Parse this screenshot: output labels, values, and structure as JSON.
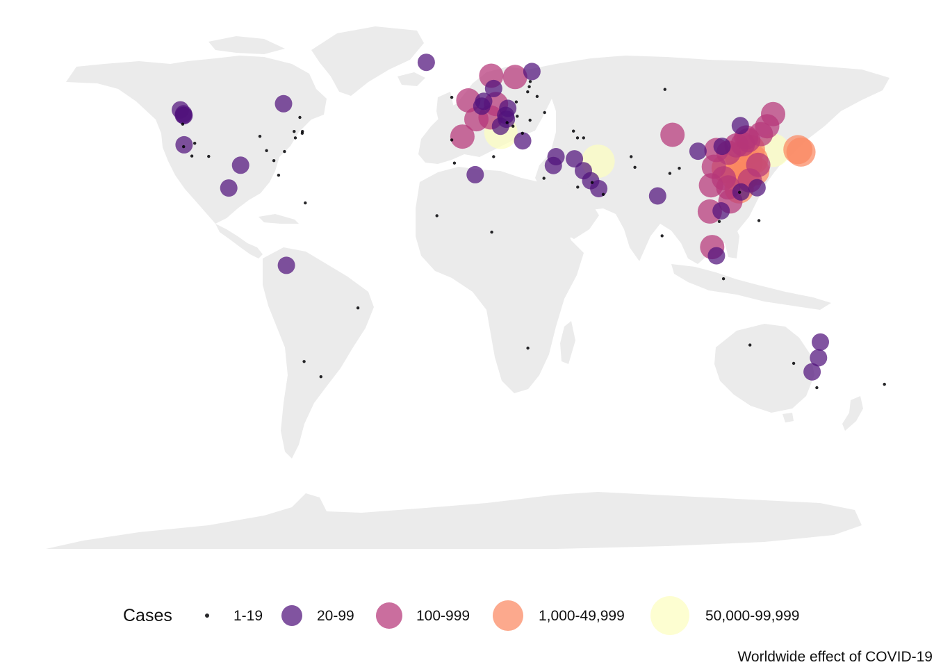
{
  "map": {
    "land_color": "#ebebeb",
    "point_opacity": 0.72,
    "legend_title": "Cases",
    "caption": "Worldwide effect of COVID-19",
    "legend": [
      {
        "label": "1-19",
        "color": "#000004"
      },
      {
        "label": "20-99",
        "color": "#51127c"
      },
      {
        "label": "100-999",
        "color": "#b63679"
      },
      {
        "label": "1,000-49,999",
        "color": "#fb8861"
      },
      {
        "label": "50,000-99,999",
        "color": "#fcfdbf"
      }
    ],
    "points": [
      {
        "place": "China - Hubei",
        "lon": 112.3,
        "lat": 30.9,
        "cls": 4
      },
      {
        "place": "China - Guangdong",
        "lon": 113.4,
        "lat": 23.3,
        "cls": 3
      },
      {
        "place": "China - Henan",
        "lon": 113.6,
        "lat": 33.9,
        "cls": 3
      },
      {
        "place": "China - Zhejiang",
        "lon": 120.1,
        "lat": 29.2,
        "cls": 3
      },
      {
        "place": "China - Hunan",
        "lon": 111.7,
        "lat": 27.6,
        "cls": 3
      },
      {
        "place": "China - Anhui",
        "lon": 117.2,
        "lat": 31.8,
        "cls": 3
      },
      {
        "place": "China - Jiangxi",
        "lon": 115.7,
        "lat": 27.6,
        "cls": 3
      },
      {
        "place": "China - Shandong",
        "lon": 118.2,
        "lat": 36.3,
        "cls": 3
      },
      {
        "place": "China - Jiangsu",
        "lon": 119.5,
        "lat": 32.9,
        "cls": 3
      },
      {
        "place": "China - Chongqing",
        "lon": 107.9,
        "lat": 30.1,
        "cls": 3
      },
      {
        "place": "China - Sichuan",
        "lon": 102.7,
        "lat": 30.6,
        "cls": 2
      },
      {
        "place": "China - Heilongjiang",
        "lon": 127.8,
        "lat": 47.9,
        "cls": 2
      },
      {
        "place": "China - Beijing",
        "lon": 116.4,
        "lat": 40.2,
        "cls": 2
      },
      {
        "place": "China - Shanghai",
        "lon": 121.5,
        "lat": 31.2,
        "cls": 2
      },
      {
        "place": "China - Hebei",
        "lon": 115.0,
        "lat": 38.0,
        "cls": 2
      },
      {
        "place": "China - Fujian",
        "lon": 117.9,
        "lat": 26.1,
        "cls": 2
      },
      {
        "place": "China - Guangxi",
        "lon": 108.8,
        "lat": 23.8,
        "cls": 2
      },
      {
        "place": "China - Shaanxi",
        "lon": 108.9,
        "lat": 35.2,
        "cls": 2
      },
      {
        "place": "China - Yunnan",
        "lon": 101.5,
        "lat": 24.5,
        "cls": 2
      },
      {
        "place": "China - Hainan",
        "lon": 109.7,
        "lat": 19.2,
        "cls": 2
      },
      {
        "place": "China - Guizhou",
        "lon": 106.9,
        "lat": 26.8,
        "cls": 2
      },
      {
        "place": "China - Tianjin",
        "lon": 117.3,
        "lat": 39.3,
        "cls": 2
      },
      {
        "place": "China - Shanxi",
        "lon": 112.3,
        "lat": 37.6,
        "cls": 2
      },
      {
        "place": "China - Liaoning",
        "lon": 122.6,
        "lat": 41.3,
        "cls": 2
      },
      {
        "place": "China - Gansu",
        "lon": 103.8,
        "lat": 36.1,
        "cls": 2
      },
      {
        "place": "China - Jilin",
        "lon": 125.3,
        "lat": 43.9,
        "cls": 2
      },
      {
        "place": "China - Xinjiang",
        "lon": 85.2,
        "lat": 41.1,
        "cls": 2
      },
      {
        "place": "China - Ningxia",
        "lon": 106.2,
        "lat": 37.3,
        "cls": 1
      },
      {
        "place": "China - Inner Mongolia",
        "lon": 113.9,
        "lat": 44.1,
        "cls": 1
      },
      {
        "place": "China - Qinghai",
        "lon": 96.0,
        "lat": 35.7,
        "cls": 1
      },
      {
        "place": "China - Tibet",
        "lon": 88.1,
        "lat": 30.1,
        "cls": 0
      },
      {
        "place": "Hong Kong",
        "lon": 114.2,
        "lat": 22.3,
        "cls": 1
      },
      {
        "place": "Macau",
        "lon": 113.6,
        "lat": 22.2,
        "cls": 0
      },
      {
        "place": "Taiwan",
        "lon": 121.0,
        "lat": 23.7,
        "cls": 1
      },
      {
        "place": "South Korea",
        "lon": 127.8,
        "lat": 36.0,
        "cls": 4
      },
      {
        "place": "Japan",
        "lon": 138.3,
        "lat": 36.2,
        "cls": 3
      },
      {
        "place": "Diamond Princess",
        "lon": 139.6,
        "lat": 35.4,
        "cls": 3
      },
      {
        "place": "Italy",
        "lon": 12.6,
        "lat": 41.9,
        "cls": 4
      },
      {
        "place": "Iran",
        "lon": 53.7,
        "lat": 32.4,
        "cls": 4
      },
      {
        "place": "Germany",
        "lon": 10.5,
        "lat": 51.2,
        "cls": 2
      },
      {
        "place": "France",
        "lon": 2.2,
        "lat": 46.2,
        "cls": 2
      },
      {
        "place": "Spain",
        "lon": -3.7,
        "lat": 40.5,
        "cls": 2
      },
      {
        "place": "United Kingdom",
        "lon": -1.2,
        "lat": 52.4,
        "cls": 2
      },
      {
        "place": "Switzerland",
        "lon": 8.2,
        "lat": 46.8,
        "cls": 2
      },
      {
        "place": "Norway",
        "lon": 8.5,
        "lat": 60.5,
        "cls": 2
      },
      {
        "place": "Sweden",
        "lon": 18.6,
        "lat": 60.1,
        "cls": 2
      },
      {
        "place": "Netherlands",
        "lon": 5.3,
        "lat": 52.1,
        "cls": 1
      },
      {
        "place": "Belgium",
        "lon": 4.5,
        "lat": 50.5,
        "cls": 1
      },
      {
        "place": "Austria",
        "lon": 14.6,
        "lat": 47.5,
        "cls": 1
      },
      {
        "place": "Denmark",
        "lon": 9.5,
        "lat": 56.3,
        "cls": 1
      },
      {
        "place": "Finland",
        "lon": 25.7,
        "lat": 61.9,
        "cls": 1
      },
      {
        "place": "Iceland",
        "lon": -19.0,
        "lat": 64.9,
        "cls": 1
      },
      {
        "place": "San Marino",
        "lon": 12.4,
        "lat": 43.9,
        "cls": 1
      },
      {
        "place": "Greece",
        "lon": 21.8,
        "lat": 39.1,
        "cls": 1
      },
      {
        "place": "Czech Republic",
        "lon": 15.5,
        "lat": 49.8,
        "cls": 1
      },
      {
        "place": "Slovenia",
        "lon": 14.9,
        "lat": 46.2,
        "cls": 1
      },
      {
        "place": "Croatia",
        "lon": 15.2,
        "lat": 45.1,
        "cls": 0
      },
      {
        "place": "Ireland",
        "lon": -8.2,
        "lat": 53.4,
        "cls": 0
      },
      {
        "place": "Portugal",
        "lon": -8.2,
        "lat": 39.4,
        "cls": 0
      },
      {
        "place": "Poland",
        "lon": 19.1,
        "lat": 51.9,
        "cls": 0
      },
      {
        "place": "Estonia",
        "lon": 25.0,
        "lat": 58.6,
        "cls": 0
      },
      {
        "place": "Latvia",
        "lon": 24.6,
        "lat": 56.9,
        "cls": 0
      },
      {
        "place": "Lithuania",
        "lon": 23.9,
        "lat": 55.2,
        "cls": 0
      },
      {
        "place": "Belarus",
        "lon": 27.9,
        "lat": 53.7,
        "cls": 0
      },
      {
        "place": "Romania",
        "lon": 24.9,
        "lat": 45.9,
        "cls": 0
      },
      {
        "place": "Hungary",
        "lon": 19.5,
        "lat": 47.2,
        "cls": 0
      },
      {
        "place": "Bosnia and Herzegovina",
        "lon": 17.7,
        "lat": 43.9,
        "cls": 0
      },
      {
        "place": "North Macedonia",
        "lon": 21.7,
        "lat": 41.6,
        "cls": 0
      },
      {
        "place": "Ukraine",
        "lon": 31.1,
        "lat": 48.4,
        "cls": 0
      },
      {
        "place": "Georgia",
        "lon": 43.3,
        "lat": 42.3,
        "cls": 0
      },
      {
        "place": "Armenia",
        "lon": 45.0,
        "lat": 40.1,
        "cls": 0
      },
      {
        "place": "Azerbaijan",
        "lon": 47.6,
        "lat": 40.1,
        "cls": 0
      },
      {
        "place": "Russia",
        "lon": 82.0,
        "lat": 56.0,
        "cls": 0
      },
      {
        "place": "Israel",
        "lon": 34.8,
        "lat": 31.0,
        "cls": 1
      },
      {
        "place": "Lebanon",
        "lon": 35.9,
        "lat": 33.9,
        "cls": 1
      },
      {
        "place": "Egypt",
        "lon": 30.8,
        "lat": 26.8,
        "cls": 0
      },
      {
        "place": "Algeria",
        "lon": 1.7,
        "lat": 28.0,
        "cls": 1
      },
      {
        "place": "Morocco",
        "lon": -7.1,
        "lat": 31.8,
        "cls": 0
      },
      {
        "place": "Tunisia",
        "lon": 9.5,
        "lat": 33.9,
        "cls": 0
      },
      {
        "place": "Senegal",
        "lon": -14.5,
        "lat": 14.5,
        "cls": 0
      },
      {
        "place": "Nigeria",
        "lon": 8.7,
        "lat": 9.1,
        "cls": 0
      },
      {
        "place": "South Africa",
        "lon": 24.0,
        "lat": -29.0,
        "cls": 0
      },
      {
        "place": "Iraq",
        "lon": 43.7,
        "lat": 33.2,
        "cls": 1
      },
      {
        "place": "Kuwait",
        "lon": 47.5,
        "lat": 29.3,
        "cls": 1
      },
      {
        "place": "Bahrain",
        "lon": 50.6,
        "lat": 26.0,
        "cls": 1
      },
      {
        "place": "Qatar",
        "lon": 51.2,
        "lat": 25.4,
        "cls": 0
      },
      {
        "place": "United Arab Emirates",
        "lon": 54.0,
        "lat": 23.4,
        "cls": 1
      },
      {
        "place": "Oman",
        "lon": 55.9,
        "lat": 21.5,
        "cls": 0
      },
      {
        "place": "Saudi Arabia",
        "lon": 45.1,
        "lat": 23.9,
        "cls": 0
      },
      {
        "place": "Afghanistan",
        "lon": 67.7,
        "lat": 33.9,
        "cls": 0
      },
      {
        "place": "Pakistan",
        "lon": 69.3,
        "lat": 30.4,
        "cls": 0
      },
      {
        "place": "Nepal",
        "lon": 84.1,
        "lat": 28.4,
        "cls": 0
      },
      {
        "place": "India",
        "lon": 78.9,
        "lat": 21.0,
        "cls": 1
      },
      {
        "place": "Sri Lanka",
        "lon": 80.8,
        "lat": 7.9,
        "cls": 0
      },
      {
        "place": "Thailand",
        "lon": 101.0,
        "lat": 15.9,
        "cls": 2
      },
      {
        "place": "Vietnam",
        "lon": 105.8,
        "lat": 16.1,
        "cls": 1
      },
      {
        "place": "Cambodia",
        "lon": 105.0,
        "lat": 12.6,
        "cls": 0
      },
      {
        "place": "Philippines",
        "lon": 121.8,
        "lat": 12.9,
        "cls": 0
      },
      {
        "place": "Malaysia",
        "lon": 102.0,
        "lat": 4.2,
        "cls": 2
      },
      {
        "place": "Singapore",
        "lon": 103.8,
        "lat": 1.35,
        "cls": 1
      },
      {
        "place": "Indonesia",
        "lon": 106.8,
        "lat": -6.2,
        "cls": 0
      },
      {
        "place": "Australia - New South Wales",
        "lon": 147.0,
        "lat": -32.2,
        "cls": 1
      },
      {
        "place": "Australia - Victoria",
        "lon": 144.3,
        "lat": -36.8,
        "cls": 1
      },
      {
        "place": "Australia - Queensland",
        "lon": 147.8,
        "lat": -27.0,
        "cls": 1
      },
      {
        "place": "Australia - South Australia",
        "lon": 136.5,
        "lat": -34.0,
        "cls": 0
      },
      {
        "place": "Australia - Western Australia",
        "lon": 118.0,
        "lat": -28.0,
        "cls": 0
      },
      {
        "place": "Australia - Tasmania",
        "lon": 146.3,
        "lat": -42.0,
        "cls": 0
      },
      {
        "place": "New Zealand",
        "lon": 174.9,
        "lat": -40.9,
        "cls": 0
      },
      {
        "place": "US - Washington",
        "lon": -121.5,
        "lat": 47.4,
        "cls": 1
      },
      {
        "place": "US - Washington (King County)",
        "lon": -121.8,
        "lat": 47.5,
        "cls": 1
      },
      {
        "place": "US - Snohomish",
        "lon": -121.7,
        "lat": 48.0,
        "cls": 1
      },
      {
        "place": "US - California",
        "lon": -121.5,
        "lat": 37.8,
        "cls": 1
      },
      {
        "place": "US - Santa Clara",
        "lon": -121.7,
        "lat": 37.2,
        "cls": 0
      },
      {
        "place": "US - Oregon",
        "lon": -122.1,
        "lat": 44.6,
        "cls": 0
      },
      {
        "place": "US - Nevada",
        "lon": -117.0,
        "lat": 38.3,
        "cls": 0
      },
      {
        "place": "US - Arizona",
        "lon": -111.1,
        "lat": 34.0,
        "cls": 0
      },
      {
        "place": "US - Los Angeles",
        "lon": -118.2,
        "lat": 34.1,
        "cls": 0
      },
      {
        "place": "US - Texas",
        "lon": -97.6,
        "lat": 31.1,
        "cls": 1
      },
      {
        "place": "US - Illinois",
        "lon": -89.4,
        "lat": 40.6,
        "cls": 0
      },
      {
        "place": "US - New York",
        "lon": -74.9,
        "lat": 42.2,
        "cls": 0
      },
      {
        "place": "US - New Jersey",
        "lon": -74.4,
        "lat": 40.1,
        "cls": 0
      },
      {
        "place": "US - Massachusetts",
        "lon": -71.4,
        "lat": 42.2,
        "cls": 0
      },
      {
        "place": "US - Florida",
        "lon": -81.5,
        "lat": 27.8,
        "cls": 0
      },
      {
        "place": "US - Georgia",
        "lon": -83.5,
        "lat": 32.6,
        "cls": 0
      },
      {
        "place": "US - Tennessee",
        "lon": -86.6,
        "lat": 35.9,
        "cls": 0
      },
      {
        "place": "US - Rhode Island",
        "lon": -71.5,
        "lat": 41.6,
        "cls": 0
      },
      {
        "place": "US - North Carolina",
        "lon": -79.0,
        "lat": 35.6,
        "cls": 0
      },
      {
        "place": "Canada - British Columbia",
        "lon": -123.1,
        "lat": 49.3,
        "cls": 1
      },
      {
        "place": "Canada - Ontario",
        "lon": -79.4,
        "lat": 51.3,
        "cls": 1
      },
      {
        "place": "Canada - Quebec",
        "lon": -72.5,
        "lat": 46.8,
        "cls": 0
      },
      {
        "place": "Mexico",
        "lon": -102.6,
        "lat": 23.6,
        "cls": 1
      },
      {
        "place": "Dominican Republic",
        "lon": -70.2,
        "lat": 18.7,
        "cls": 0
      },
      {
        "place": "Ecuador",
        "lon": -78.2,
        "lat": -1.8,
        "cls": 1
      },
      {
        "place": "Brazil",
        "lon": -47.9,
        "lat": -15.8,
        "cls": 0
      },
      {
        "place": "Argentina",
        "lon": -63.6,
        "lat": -38.4,
        "cls": 0
      },
      {
        "place": "Chile",
        "lon": -70.7,
        "lat": -33.4,
        "cls": 0
      }
    ]
  }
}
